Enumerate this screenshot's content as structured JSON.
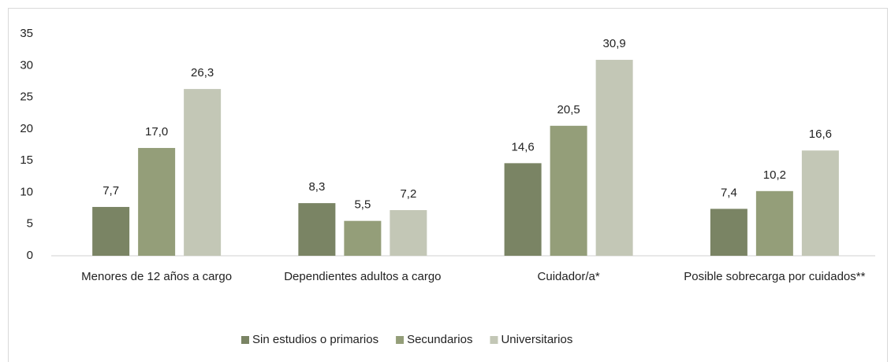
{
  "chart_data": {
    "type": "bar",
    "categories": [
      "Menores de 12 años a cargo",
      "Dependientes adultos a cargo",
      "Cuidador/a*",
      "Posible sobrecarga por cuidados**"
    ],
    "series": [
      {
        "name": "Sin estudios o primarios",
        "color": "#7a8464",
        "values": [
          7.7,
          8.3,
          14.6,
          7.4
        ],
        "value_labels": [
          "7,7",
          "8,3",
          "14,6",
          "7,4"
        ]
      },
      {
        "name": "Secundarios",
        "color": "#949e79",
        "values": [
          17.0,
          5.5,
          20.5,
          10.2
        ],
        "value_labels": [
          "17,0",
          "5,5",
          "20,5",
          "10,2"
        ]
      },
      {
        "name": "Universitarios",
        "color": "#c3c7b6",
        "values": [
          26.3,
          7.2,
          30.9,
          16.6
        ],
        "value_labels": [
          "26,3",
          "7,2",
          "30,9",
          "16,6"
        ]
      }
    ],
    "ylim": [
      0,
      35
    ],
    "yticks": [
      0,
      5,
      10,
      15,
      20,
      25,
      30,
      35
    ],
    "grid": false,
    "legend": "bottom"
  }
}
